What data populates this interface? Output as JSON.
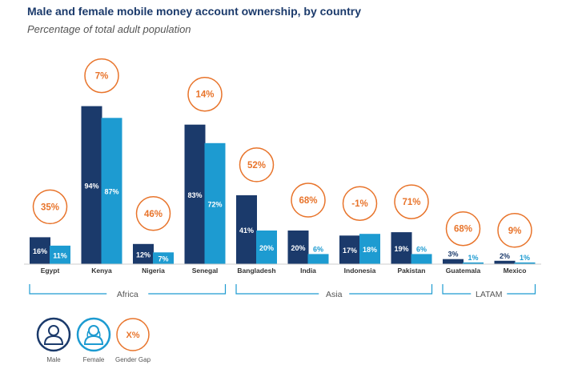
{
  "title": "Male and female mobile money account ownership, by country",
  "subtitle": "Percentage of total adult population",
  "colors": {
    "male": "#1b3a6b",
    "female": "#1d9bd1",
    "gap": "#e8742b",
    "text": "#1b3a6b",
    "grey": "#555555"
  },
  "chart_data": {
    "type": "bar",
    "categories": [
      "Egypt",
      "Kenya",
      "Nigeria",
      "Senegal",
      "Bangladesh",
      "India",
      "Indonesia",
      "Pakistan",
      "Guatemala",
      "Mexico"
    ],
    "series": [
      {
        "name": "Male",
        "values": [
          16,
          94,
          12,
          83,
          41,
          20,
          17,
          19,
          3,
          2
        ],
        "labels": [
          "16%",
          "94%",
          "12%",
          "83%",
          "41%",
          "20%",
          "17%",
          "19%",
          "3%",
          "2%"
        ]
      },
      {
        "name": "Female",
        "values": [
          11,
          87,
          7,
          72,
          20,
          6,
          18,
          6,
          1,
          1
        ],
        "labels": [
          "11%",
          "87%",
          "7%",
          "72%",
          "20%",
          "6%",
          "18%",
          "6%",
          "1%",
          "1%"
        ]
      }
    ],
    "gender_gap": [
      "35%",
      "7%",
      "46%",
      "14%",
      "52%",
      "68%",
      "-1%",
      "71%",
      "68%",
      "9%"
    ],
    "regions": [
      {
        "name": "Africa",
        "countries": [
          "Egypt",
          "Kenya",
          "Nigeria",
          "Senegal"
        ]
      },
      {
        "name": "Asia",
        "countries": [
          "Bangladesh",
          "India",
          "Indonesia",
          "Pakistan"
        ]
      },
      {
        "name": "LATAM",
        "countries": [
          "Guatemala",
          "Mexico"
        ]
      }
    ],
    "ylim": [
      0,
      100
    ],
    "grid": false
  },
  "legend": [
    {
      "label": "Male",
      "icon": "male-person-icon"
    },
    {
      "label": "Female",
      "icon": "female-person-icon"
    },
    {
      "label": "Gender Gap",
      "icon": "gap-circle-icon",
      "symbol": "X%"
    }
  ]
}
